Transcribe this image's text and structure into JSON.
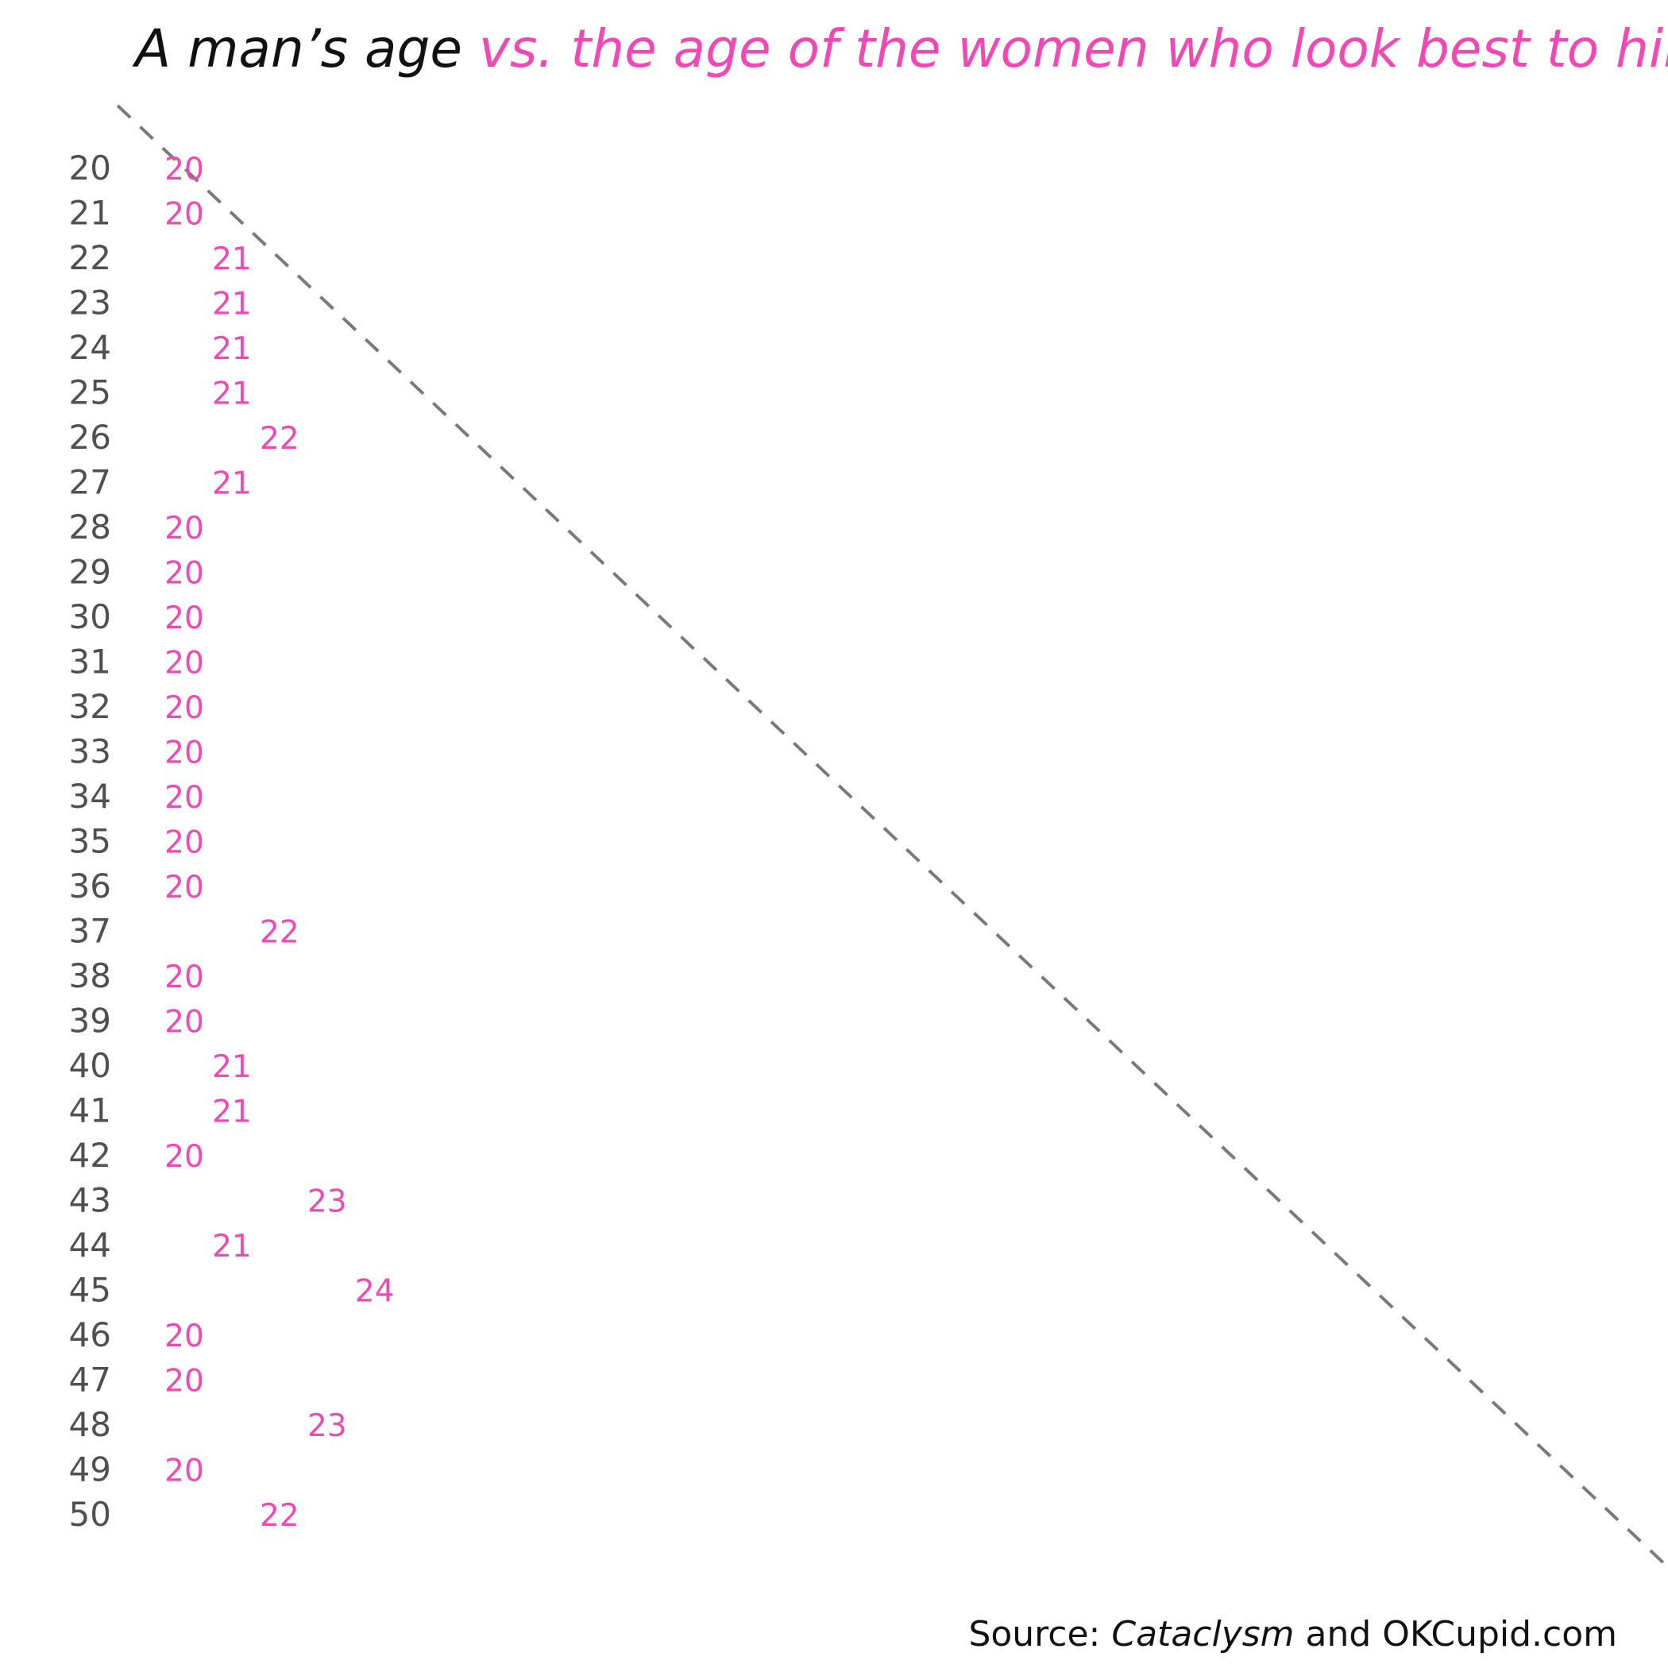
{
  "colors": {
    "title_black": "#111111",
    "accent_pink": "#f048b4",
    "axis_label": "#505050",
    "reference_line": "#7a7a7a"
  },
  "title": {
    "part1": "A man’s age ",
    "part2": "vs. the age of the women who look best to him"
  },
  "source": {
    "prefix": "Source: ",
    "italic": "Cataclysm",
    "suffix": " and OKCupid.com"
  },
  "chart_data": {
    "type": "scatter",
    "title": "A man’s age vs. the age of the women who look best to him",
    "xlabel": "",
    "ylabel": "",
    "categories": [
      20,
      21,
      22,
      23,
      24,
      25,
      26,
      27,
      28,
      29,
      30,
      31,
      32,
      33,
      34,
      35,
      36,
      37,
      38,
      39,
      40,
      41,
      42,
      43,
      44,
      45,
      46,
      47,
      48,
      49,
      50
    ],
    "values": [
      20,
      20,
      21,
      21,
      21,
      21,
      22,
      21,
      20,
      20,
      20,
      20,
      20,
      20,
      20,
      20,
      20,
      22,
      20,
      20,
      21,
      21,
      20,
      23,
      21,
      24,
      20,
      20,
      23,
      20,
      22
    ],
    "xlim": [
      20,
      50
    ],
    "ylim": [
      20,
      50
    ],
    "grid": false,
    "reference_line": "dashed diagonal y = x"
  }
}
